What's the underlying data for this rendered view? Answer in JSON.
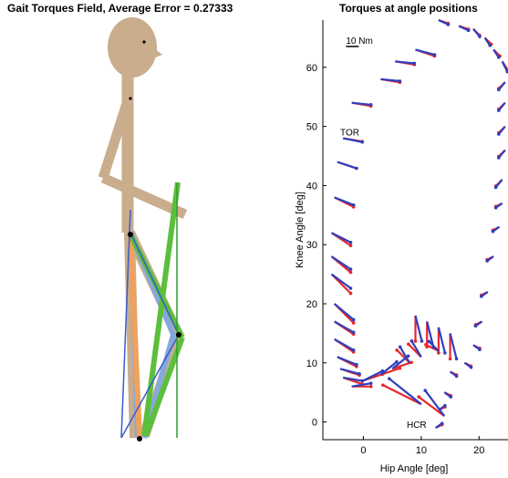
{
  "colors": {
    "body": "#c9ad8c",
    "blue_leg": "#86a9dc",
    "green_leg": "#5cbf3c",
    "orange_leg": "#f0a15c",
    "blue_line": "#3a5bd2",
    "green_line": "#2e9e2e",
    "arrow_red": "#e8272b",
    "arrow_blue": "#2f3fbe"
  },
  "left_panel": {
    "title": "Gait Torques Field, Average Error = 0.27333"
  },
  "chart_data": {
    "type": "scatter",
    "title": "Torques at angle positions",
    "xlabel": "Hip Angle [deg]",
    "ylabel": "Knee Angle [deg]",
    "xlim": [
      -7,
      25
    ],
    "ylim": [
      -3,
      68
    ],
    "xticks": [
      0,
      10,
      20
    ],
    "yticks": [
      0,
      10,
      20,
      30,
      40,
      50,
      60
    ],
    "grid": false,
    "box": false,
    "annotations": [
      {
        "text": "TOR",
        "x": -4,
        "y": 48.5
      },
      {
        "text": "HCR",
        "x": 7.5,
        "y": -1
      },
      {
        "text": "10 Nm",
        "x": -3,
        "y": 64
      }
    ],
    "scale_bar_nm": 10,
    "series": [
      {
        "color": "#e8272b",
        "points": [
          [
            13,
            68
          ],
          [
            16.5,
            67
          ],
          [
            19,
            66.5
          ],
          [
            21,
            65
          ],
          [
            22.5,
            63
          ],
          [
            24,
            61
          ],
          [
            24.5,
            57.5
          ],
          [
            24.5,
            54
          ],
          [
            24.5,
            50
          ],
          [
            24.5,
            46
          ],
          [
            24,
            41
          ],
          [
            24,
            37
          ],
          [
            23.5,
            33
          ],
          [
            22.5,
            28
          ],
          [
            21.5,
            22
          ],
          [
            20.5,
            17
          ],
          [
            19,
            13
          ],
          [
            17.5,
            10
          ],
          [
            15,
            8.5
          ],
          [
            14,
            5
          ],
          [
            13,
            2
          ],
          [
            12.5,
            -1
          ],
          [
            9,
            63
          ],
          [
            5.5,
            61
          ],
          [
            3,
            58
          ],
          [
            -2,
            54
          ],
          [
            -3.5,
            48
          ],
          [
            -4.5,
            44
          ],
          [
            -5,
            38
          ],
          [
            -5.5,
            32
          ],
          [
            -5.5,
            28
          ],
          [
            -5.5,
            25
          ],
          [
            -5,
            20
          ],
          [
            -5,
            17
          ],
          [
            -5,
            14
          ],
          [
            -4.5,
            11
          ],
          [
            -4,
            9
          ],
          [
            -3.5,
            7.5
          ],
          [
            -2,
            6
          ],
          [
            0,
            7
          ],
          [
            3,
            8
          ],
          [
            5,
            9
          ],
          [
            8,
            10
          ],
          [
            10,
            11
          ],
          [
            13,
            12
          ],
          [
            9,
            18
          ],
          [
            11,
            17
          ],
          [
            13,
            16
          ],
          [
            15,
            15
          ],
          [
            10,
            3
          ],
          [
            14,
            1
          ]
        ],
        "vectors": [
          [
            1.5,
            -0.5
          ],
          [
            1.5,
            -0.5
          ],
          [
            1,
            -1
          ],
          [
            1,
            -1
          ],
          [
            1,
            -1
          ],
          [
            1,
            -1.5
          ],
          [
            -1,
            -1
          ],
          [
            -1,
            -1
          ],
          [
            -1,
            -1
          ],
          [
            -1,
            -1
          ],
          [
            -1,
            -1
          ],
          [
            -1,
            -0.5
          ],
          [
            -1,
            -0.5
          ],
          [
            -1,
            -0.5
          ],
          [
            -1,
            -0.5
          ],
          [
            -1,
            -0.5
          ],
          [
            1,
            -0.5
          ],
          [
            1,
            -0.5
          ],
          [
            1,
            -0.5
          ],
          [
            1,
            -0.5
          ],
          [
            1,
            0.5
          ],
          [
            1,
            0.5
          ],
          [
            3,
            -1
          ],
          [
            3,
            -0.5
          ],
          [
            3,
            -0.5
          ],
          [
            3,
            -0.5
          ],
          [
            3,
            -0.5
          ],
          [
            3,
            -1
          ],
          [
            3,
            -1.5
          ],
          [
            3,
            -2
          ],
          [
            3,
            -2.5
          ],
          [
            3,
            -3
          ],
          [
            3,
            -3
          ],
          [
            3,
            -2
          ],
          [
            3,
            -2
          ],
          [
            3,
            -1.5
          ],
          [
            3,
            -1
          ],
          [
            3,
            -1
          ],
          [
            3,
            0
          ],
          [
            3,
            1
          ],
          [
            3,
            1
          ],
          [
            3,
            1
          ],
          [
            -2,
            2
          ],
          [
            -2,
            2
          ],
          [
            -2,
            1
          ],
          [
            0,
            -4
          ],
          [
            0,
            -4
          ],
          [
            0,
            -4
          ],
          [
            0,
            -4
          ],
          [
            -6,
            3
          ],
          [
            -4,
            3
          ]
        ]
      },
      {
        "color": "#2f3fbe",
        "points": [
          [
            13,
            68
          ],
          [
            16.5,
            67
          ],
          [
            19,
            66.5
          ],
          [
            21,
            65
          ],
          [
            22.5,
            63
          ],
          [
            24,
            61
          ],
          [
            24.5,
            57.5
          ],
          [
            24.5,
            54
          ],
          [
            24.5,
            50
          ],
          [
            24.5,
            46
          ],
          [
            24,
            41
          ],
          [
            24,
            37
          ],
          [
            23.5,
            33
          ],
          [
            22.5,
            28
          ],
          [
            21.5,
            22
          ],
          [
            20.5,
            17
          ],
          [
            19,
            13
          ],
          [
            17.5,
            10
          ],
          [
            15,
            8.5
          ],
          [
            14,
            5
          ],
          [
            13,
            2
          ],
          [
            12.5,
            -1
          ],
          [
            9,
            63
          ],
          [
            5.5,
            61
          ],
          [
            3,
            58
          ],
          [
            -2,
            54
          ],
          [
            -3.5,
            48
          ],
          [
            -4.5,
            44
          ],
          [
            -5,
            38
          ],
          [
            -5.5,
            32
          ],
          [
            -5.5,
            28
          ],
          [
            -5.5,
            25
          ],
          [
            -5,
            20
          ],
          [
            -5,
            17
          ],
          [
            -5,
            14
          ],
          [
            -4.5,
            11
          ],
          [
            -4,
            9
          ],
          [
            -3.5,
            7.5
          ],
          [
            -2,
            6
          ],
          [
            0,
            7
          ],
          [
            3,
            8
          ],
          [
            5,
            9
          ],
          [
            8,
            10
          ],
          [
            10,
            11
          ],
          [
            13,
            12
          ],
          [
            9,
            18
          ],
          [
            11,
            17
          ],
          [
            13,
            16
          ],
          [
            15,
            15
          ],
          [
            10,
            3
          ],
          [
            14,
            1
          ]
        ],
        "vectors": [
          [
            1.5,
            -0.7
          ],
          [
            1.5,
            -0.7
          ],
          [
            1,
            -1.2
          ],
          [
            0.8,
            -1.2
          ],
          [
            0.8,
            -1.2
          ],
          [
            0.8,
            -1.6
          ],
          [
            -1,
            -1.2
          ],
          [
            -1,
            -1.2
          ],
          [
            -1,
            -1.2
          ],
          [
            -1,
            -1.2
          ],
          [
            -1,
            -1.2
          ],
          [
            -1,
            -0.7
          ],
          [
            -1,
            -0.7
          ],
          [
            -1,
            -0.7
          ],
          [
            -1,
            -0.7
          ],
          [
            -1,
            -0.7
          ],
          [
            1,
            -0.7
          ],
          [
            1,
            -0.7
          ],
          [
            1,
            -0.7
          ],
          [
            1,
            -0.7
          ],
          [
            1,
            0.7
          ],
          [
            1,
            0.7
          ],
          [
            3,
            -0.8
          ],
          [
            3,
            -0.3
          ],
          [
            3,
            -0.3
          ],
          [
            3,
            -0.3
          ],
          [
            3,
            -0.6
          ],
          [
            3,
            -1
          ],
          [
            3,
            -1.2
          ],
          [
            3,
            -1.5
          ],
          [
            3,
            -2
          ],
          [
            3,
            -2.2
          ],
          [
            3,
            -2.5
          ],
          [
            3,
            -1.7
          ],
          [
            3,
            -1.7
          ],
          [
            3,
            -1.2
          ],
          [
            3,
            -0.8
          ],
          [
            3,
            -0.5
          ],
          [
            3,
            0.5
          ],
          [
            3,
            1.5
          ],
          [
            2.5,
            2
          ],
          [
            2.5,
            2
          ],
          [
            -1.5,
            2.5
          ],
          [
            -1.5,
            2.5
          ],
          [
            -1.5,
            1.5
          ],
          [
            1,
            -4
          ],
          [
            1,
            -4
          ],
          [
            1,
            -4
          ],
          [
            1,
            -4
          ],
          [
            -5,
            4
          ],
          [
            -3,
            4
          ]
        ]
      }
    ]
  }
}
